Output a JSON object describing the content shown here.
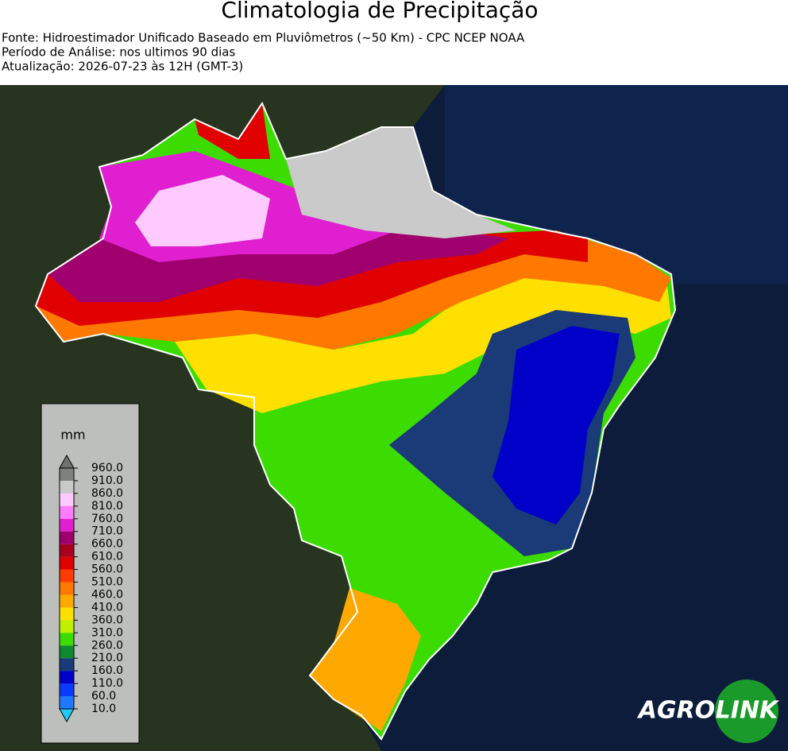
{
  "header": {
    "title": "Climatologia de Precipitação",
    "lines": [
      "Fonte: Hidroestimador Unificado Baseado em Pluviômetros (~50 Km) - CPC NCEP NOAA",
      "Período de Análise: nos ultimos 90 dias",
      "Atualização: 2026-07-23 às 12H (GMT-3)"
    ]
  },
  "colorbar": {
    "label": "mm",
    "ticks": [
      {
        "value": 10,
        "label": "10.0"
      },
      {
        "value": 60,
        "label": "60.0"
      },
      {
        "value": 110,
        "label": "110.0"
      },
      {
        "value": 160,
        "label": "160.0"
      },
      {
        "value": 210,
        "label": "210.0"
      },
      {
        "value": 260,
        "label": "260.0"
      },
      {
        "value": 310,
        "label": "310.0"
      },
      {
        "value": 360,
        "label": "360.0"
      },
      {
        "value": 410,
        "label": "410.0"
      },
      {
        "value": 460,
        "label": "460.0"
      },
      {
        "value": 510,
        "label": "510.0"
      },
      {
        "value": 560,
        "label": "560.0"
      },
      {
        "value": 610,
        "label": "610.0"
      },
      {
        "value": 660,
        "label": "660.0"
      },
      {
        "value": 710,
        "label": "710.0"
      },
      {
        "value": 760,
        "label": "760.0"
      },
      {
        "value": 810,
        "label": "810.0"
      },
      {
        "value": 860,
        "label": "860.0"
      },
      {
        "value": 910,
        "label": "910.0"
      },
      {
        "value": 960,
        "label": "960.0"
      }
    ],
    "colors": [
      "#1e78ff",
      "#0a3cff",
      "#0000c8",
      "#1a3a78",
      "#108a30",
      "#3cdc00",
      "#c0f000",
      "#ffe000",
      "#ffa800",
      "#ff7800",
      "#ff3c00",
      "#e00000",
      "#a8001e",
      "#a0006e",
      "#e020d0",
      "#ff7cff",
      "#ffcaff",
      "#cacaca",
      "#808080"
    ],
    "under_color": "#20c8f8",
    "over_color": "#707070"
  },
  "logo": {
    "left": "AGRO",
    "right": "LINK"
  }
}
